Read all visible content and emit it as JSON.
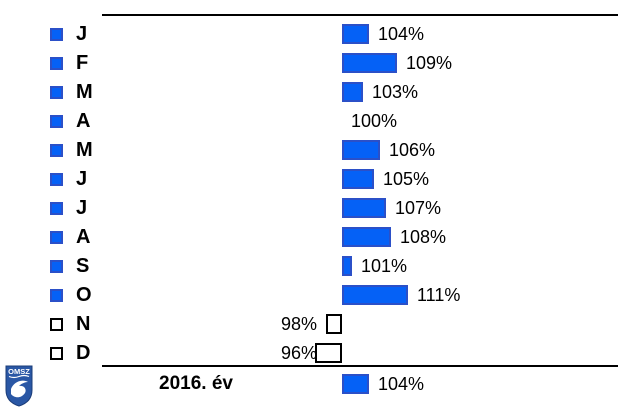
{
  "chart_data": {
    "type": "bar",
    "orientation": "horizontal-diverging",
    "baseline_value": 100,
    "unit": "%",
    "grid": false,
    "legend_position": "left",
    "categories": [
      "J",
      "F",
      "M",
      "A",
      "M",
      "J",
      "J",
      "A",
      "S",
      "O",
      "N",
      "D"
    ],
    "values": [
      104,
      109,
      103,
      100,
      106,
      105,
      107,
      108,
      101,
      111,
      98,
      96
    ],
    "value_labels": [
      "104%",
      "109%",
      "103%",
      "100%",
      "106%",
      "105%",
      "107%",
      "108%",
      "101%",
      "111%",
      "98%",
      "96%"
    ],
    "summary_row": {
      "label": "2016. év",
      "value": 104,
      "value_label": "104%"
    },
    "colors": {
      "bar_above_fill": "#0561F6",
      "bar_above_border": "#2B50C8",
      "bar_below_fill": "#FFFFFF",
      "bar_below_border": "#000000",
      "axis_line": "#000000",
      "logo_blue": "#2A57A5",
      "logo_blue_dark": "#1B3C78"
    }
  },
  "logo": {
    "text": "OMSZ"
  }
}
